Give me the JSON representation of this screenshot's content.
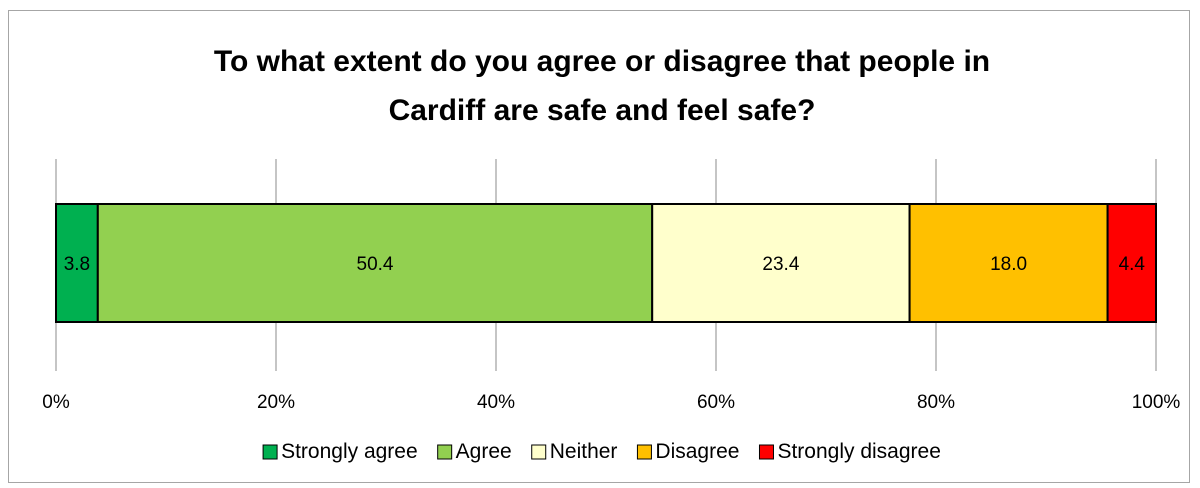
{
  "chart_data": {
    "type": "bar",
    "orientation": "horizontal",
    "stacked": true,
    "title": "To what extent do you agree or disagree that people in Cardiff are safe and feel safe?",
    "title_lines": [
      "To what extent do you agree or disagree that people in",
      "Cardiff are safe and feel safe?"
    ],
    "categories": [
      ""
    ],
    "series": [
      {
        "name": "Strongly agree",
        "values": [
          3.8
        ],
        "label": "3.8",
        "color": "#00b050"
      },
      {
        "name": "Agree",
        "values": [
          50.4
        ],
        "label": "50.4",
        "color": "#92d050"
      },
      {
        "name": "Neither",
        "values": [
          23.4
        ],
        "label": "23.4",
        "color": "#ffffcc"
      },
      {
        "name": "Disagree",
        "values": [
          18.0
        ],
        "label": "18.0",
        "color": "#ffc000"
      },
      {
        "name": "Strongly disagree",
        "values": [
          4.4
        ],
        "label": "4.4",
        "color": "#ff0000"
      }
    ],
    "xlim": [
      0,
      100
    ],
    "x_ticks": [
      "0%",
      "20%",
      "40%",
      "60%",
      "80%",
      "100%"
    ],
    "grid": true,
    "legend_position": "bottom"
  }
}
